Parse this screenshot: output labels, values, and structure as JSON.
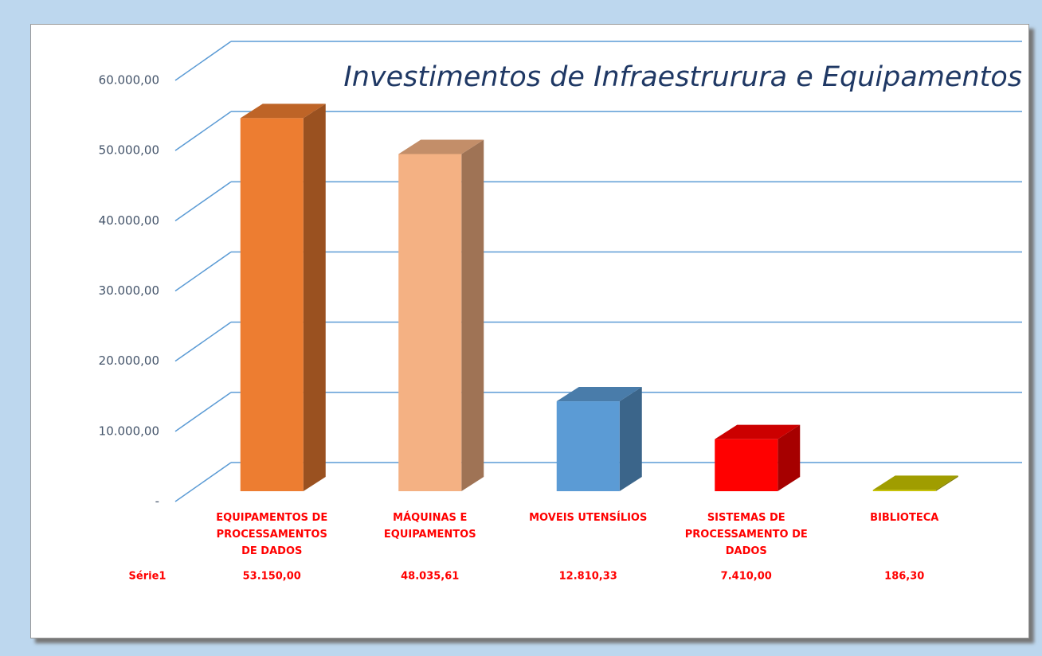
{
  "chart_data": {
    "type": "bar3d",
    "title": "Investimentos de Infraestrurura e Equipamentos",
    "categories": [
      "EQUIPAMENTOS DE PROCESSAMENTOS DE DADOS",
      "MÁQUINAS E EQUIPAMENTOS",
      "MOVEIS UTENSÍLIOS",
      "SISTEMAS DE PROCESSAMENTO DE DADOS",
      "BIBLIOTECA"
    ],
    "series": [
      {
        "name": "Série1",
        "values": [
          53150,
          48035.61,
          12810.33,
          7410,
          186.3
        ],
        "value_labels": [
          "53.150,00",
          "48.035,61",
          "12.810,33",
          "7.410,00",
          "186,30"
        ],
        "colors": [
          "#ed7d31",
          "#f4b183",
          "#5b9bd5",
          "#ff0000",
          "#c8c400"
        ]
      }
    ],
    "ylim": [
      0,
      60000
    ],
    "yticks": [
      {
        "value": 0,
        "label": "-"
      },
      {
        "value": 10000,
        "label": "10.000,00"
      },
      {
        "value": 20000,
        "label": "20.000,00"
      },
      {
        "value": 30000,
        "label": "30.000,00"
      },
      {
        "value": 40000,
        "label": "40.000,00"
      },
      {
        "value": 50000,
        "label": "50.000,00"
      },
      {
        "value": 60000,
        "label": "60.000,00"
      }
    ],
    "grid": true
  }
}
